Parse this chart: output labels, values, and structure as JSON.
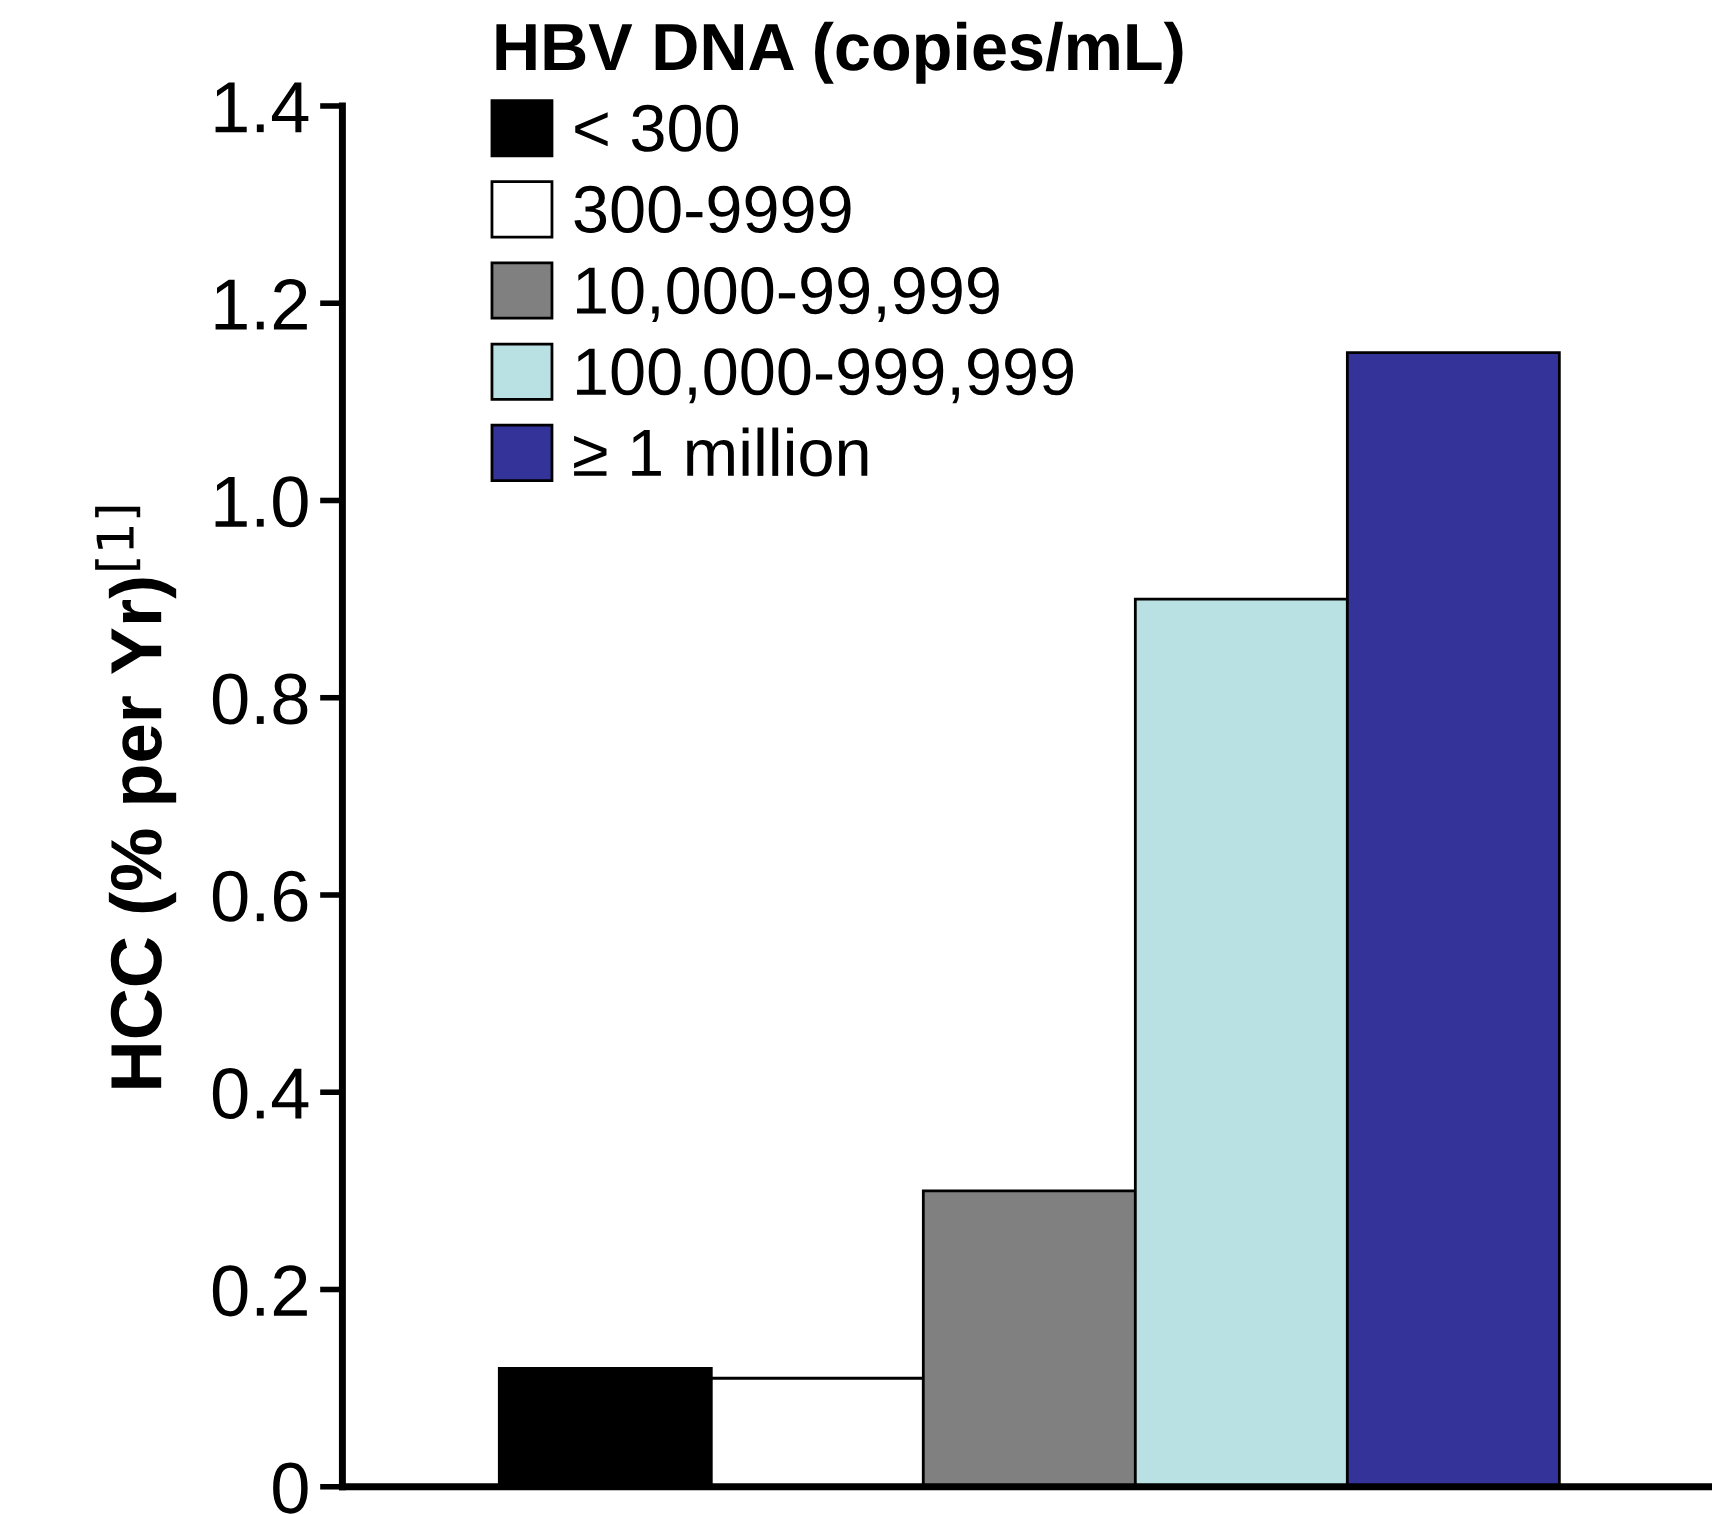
{
  "chart_data": {
    "type": "bar",
    "ylabel": "HCC (% per Yr)$^{[1]}$",
    "legend_title": "HBV DNA (copies/mL)",
    "categories": [
      null,
      null,
      null,
      null,
      null
    ],
    "series": [
      {
        "name": "< 300",
        "color": "#000000",
        "values": [
          0.12,
          null,
          null,
          null,
          null
        ]
      },
      {
        "name": "300-9999",
        "color": "#ffffff",
        "values": [
          null,
          0.11,
          null,
          null,
          null
        ]
      },
      {
        "name": "10,000-99,999",
        "color": "#808080",
        "values": [
          null,
          null,
          0.3,
          null,
          null
        ]
      },
      {
        "name": "100,000-999,999",
        "color": "#b9e0e3",
        "values": [
          null,
          null,
          null,
          0.9,
          null
        ]
      },
      {
        "name": "≥ 1 million",
        "color": "#333399",
        "values": [
          null,
          null,
          null,
          null,
          1.15
        ]
      }
    ],
    "ylim": [
      0,
      1.4
    ],
    "yticks": [
      0,
      0.2,
      0.4,
      0.6,
      0.8,
      {
        "value": 1.0,
        "label": "1.0"
      },
      1.2,
      1.4
    ],
    "tick_labels": "y",
    "legend": "top left",
    "grid": false
  }
}
